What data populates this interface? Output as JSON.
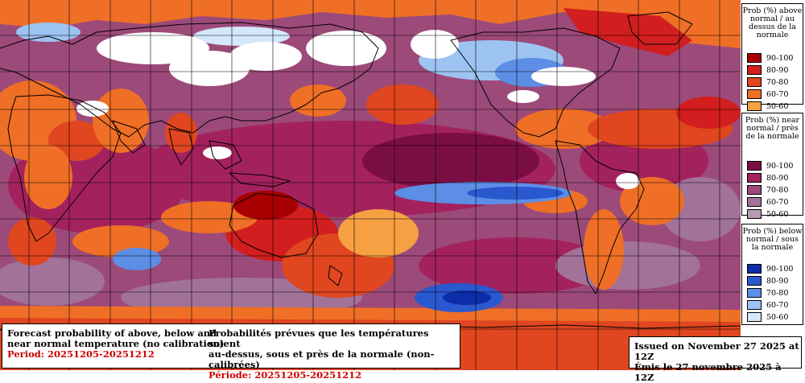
{
  "legend": {
    "above": {
      "title": "Prob (%) above normal / au dessus de la normale",
      "items": [
        {
          "label": "90-100",
          "color": "#a80000"
        },
        {
          "label": "80-90",
          "color": "#d21e1e"
        },
        {
          "label": "70-80",
          "color": "#e0461f"
        },
        {
          "label": "60-70",
          "color": "#ef6f26"
        },
        {
          "label": "50-60",
          "color": "#f5a042"
        }
      ]
    },
    "near": {
      "title": "Prob (%) near normal / près de la normale",
      "items": [
        {
          "label": "90-100",
          "color": "#7a0e44"
        },
        {
          "label": "80-90",
          "color": "#a3225d"
        },
        {
          "label": "70-80",
          "color": "#9c4a7a"
        },
        {
          "label": "60-70",
          "color": "#a27298"
        },
        {
          "label": "50-60",
          "color": "#b69bb6"
        }
      ]
    },
    "below": {
      "title": "Prob (%) below normal / sous la normale",
      "items": [
        {
          "label": "90-100",
          "color": "#0b2ea8"
        },
        {
          "label": "80-90",
          "color": "#2a58cf"
        },
        {
          "label": "70-80",
          "color": "#5c8ee6"
        },
        {
          "label": "60-70",
          "color": "#9dc3f2"
        },
        {
          "label": "50-60",
          "color": "#d4e8fb"
        }
      ]
    }
  },
  "info_en": {
    "line1": "Forecast probability of above, below and",
    "line2": "near normal temperature (no calibration)",
    "period": "Period: 20251205-20251212"
  },
  "info_fr": {
    "line1": "Probabilités prévues que les températures soient",
    "line2": "au-dessus, sous et près de la normale (non-calibrées)",
    "period": "Période: 20251205-20251212"
  },
  "issued": {
    "en": "Issued on November 27 2025 at 12Z",
    "fr": "Émis le 27 novembre 2025 à 12Z"
  }
}
